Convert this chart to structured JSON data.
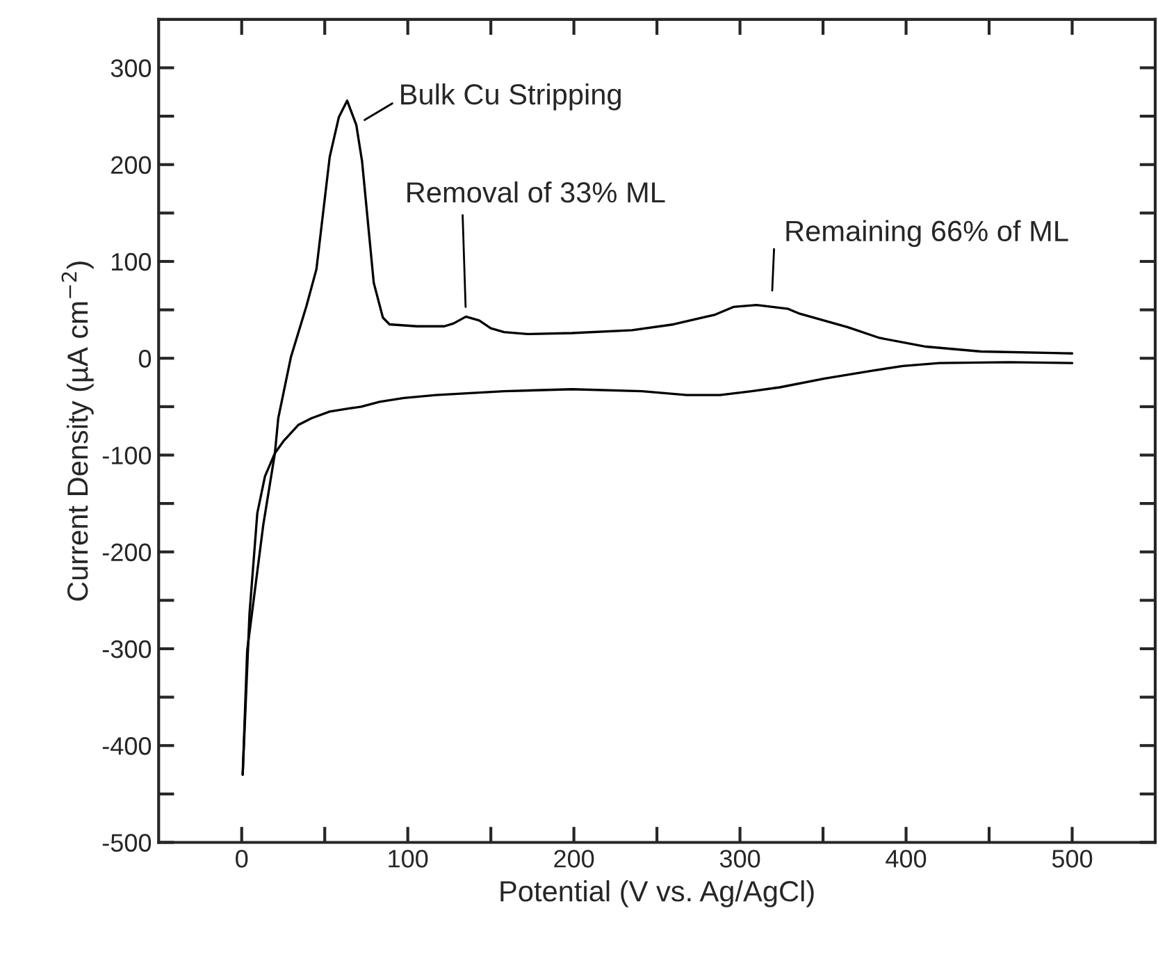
{
  "chart_data": {
    "type": "line",
    "xlabel": "Potential (V vs. Ag/AgCl)",
    "ylabel": "Current Density (µA cm$^{−2}$)",
    "xlim": [
      -50,
      550
    ],
    "ylim": [
      -500,
      350
    ],
    "xticks": [
      0,
      {
        "value": 50,
        "label": null
      },
      100,
      {
        "value": 150,
        "label": null
      },
      200,
      {
        "value": 250,
        "label": null
      },
      300,
      {
        "value": 350,
        "label": null
      },
      400,
      {
        "value": 450,
        "label": null
      },
      500
    ],
    "yticks": [
      -500,
      {
        "value": -450,
        "label": null
      },
      -400,
      {
        "value": -350,
        "label": null
      },
      -300,
      {
        "value": -250,
        "label": null
      },
      -200,
      {
        "value": -150,
        "label": null
      },
      -100,
      {
        "value": -50,
        "label": null
      },
      0,
      {
        "value": 50,
        "label": null
      },
      100,
      {
        "value": 150,
        "label": null
      },
      200,
      {
        "value": 250,
        "label": null
      },
      300
    ],
    "grid": false,
    "legend": false,
    "marker": "none",
    "line_style": "solid",
    "series": [
      {
        "color": "#000000",
        "x": [
          0.6,
          3.3,
          13,
          20,
          22,
          29.6,
          39,
          45,
          53,
          58.5,
          63.5,
          69,
          72.5,
          79.5,
          85,
          89,
          105.5,
          122,
          127.6,
          135,
          143,
          150,
          158,
          172,
          199,
          235,
          260,
          285,
          296,
          310,
          329,
          336,
          365,
          384,
          412,
          445,
          500
        ],
        "values": [
          -430,
          -302,
          -172,
          -98,
          -62,
          1,
          54,
          92,
          208,
          249,
          266,
          241,
          203,
          78,
          42,
          35,
          33,
          33,
          36,
          43,
          39,
          31,
          27,
          25,
          26,
          29,
          35,
          45,
          53,
          55,
          51,
          46,
          32,
          21,
          12,
          7,
          5
        ]
      },
      {
        "color": "#000000",
        "x": [
          500,
          462,
          420,
          398,
          379,
          351,
          324,
          307,
          288,
          268,
          241,
          199,
          158,
          117,
          97.6,
          83,
          72,
          64,
          53,
          42,
          34,
          25,
          20,
          14,
          9.4,
          4.7,
          0.6
        ],
        "values": [
          -5,
          -4,
          -5,
          -8,
          -13,
          -21,
          -30,
          -34,
          -38,
          -38,
          -34,
          -32,
          -34,
          -38,
          -41,
          -45,
          -50,
          -52,
          -55,
          -62,
          -69,
          -86,
          -98,
          -122,
          -160,
          -264,
          -430
        ]
      }
    ],
    "annotations": [
      {
        "text": "Bulk Cu Stripping",
        "x": 69,
        "y": 241
      },
      {
        "text": "Removal of 33% ML",
        "x": 135,
        "y": 43
      },
      {
        "text": "Remaining 66% of ML",
        "x": 319,
        "y": 54
      }
    ]
  }
}
